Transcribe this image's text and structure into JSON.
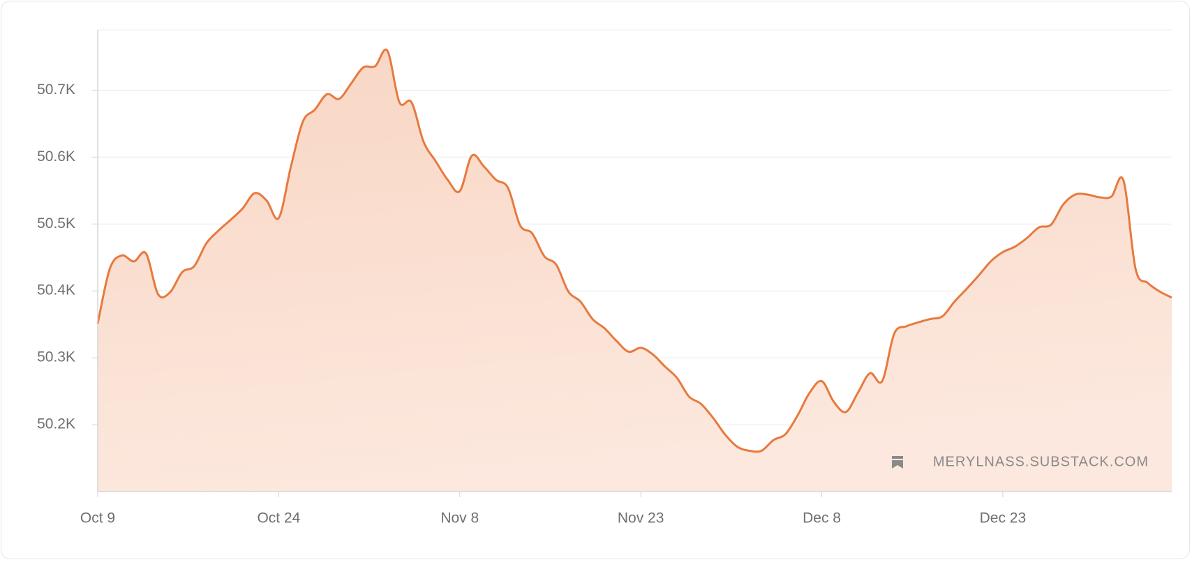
{
  "chart_data": {
    "type": "area",
    "categories": [
      "Oct 9",
      null,
      null,
      null,
      null,
      null,
      null,
      null,
      null,
      null,
      null,
      null,
      null,
      null,
      null,
      "Oct 24",
      null,
      null,
      null,
      null,
      null,
      null,
      null,
      null,
      null,
      null,
      null,
      null,
      null,
      null,
      "Nov 8",
      null,
      null,
      null,
      null,
      null,
      null,
      null,
      null,
      null,
      null,
      null,
      null,
      null,
      null,
      "Nov 23",
      null,
      null,
      null,
      null,
      null,
      null,
      null,
      null,
      null,
      null,
      null,
      null,
      null,
      null,
      "Dec 8",
      null,
      null,
      null,
      null,
      null,
      null,
      null,
      null,
      null,
      null,
      null,
      null,
      null,
      null,
      "Dec 23",
      null,
      null,
      null,
      null,
      null,
      null,
      null,
      null,
      null,
      null,
      null,
      null,
      null,
      null
    ],
    "values": [
      50351,
      50433,
      50453,
      50444,
      50456,
      50395,
      50398,
      50428,
      50437,
      50471,
      50490,
      50506,
      50523,
      50546,
      50535,
      50509,
      50585,
      50653,
      50671,
      50694,
      50687,
      50710,
      50734,
      50736,
      50759,
      50682,
      50682,
      50623,
      50594,
      50566,
      50549,
      50602,
      50586,
      50566,
      50554,
      50498,
      50486,
      50452,
      50439,
      50399,
      50384,
      50358,
      50344,
      50325,
      50309,
      50315,
      50305,
      50287,
      50270,
      50242,
      50231,
      50210,
      50185,
      50167,
      50161,
      50161,
      50177,
      50186,
      50214,
      50248,
      50265,
      50234,
      50219,
      50248,
      50277,
      50265,
      50336,
      50347,
      50353,
      50358,
      50362,
      50384,
      50403,
      50423,
      50444,
      50458,
      50466,
      50479,
      50495,
      50499,
      50529,
      50544,
      50544,
      50540,
      50541,
      50565,
      50433,
      50412,
      50399,
      50390
    ],
    "color": "#e8793f",
    "ylim": [
      50100,
      50790
    ],
    "yticks": [
      {
        "value": 50200,
        "label": "50.2K"
      },
      {
        "value": 50300,
        "label": "50.3K"
      },
      {
        "value": 50400,
        "label": "50.4K"
      },
      {
        "value": 50500,
        "label": "50.5K"
      },
      {
        "value": 50600,
        "label": "50.6K"
      },
      {
        "value": 50700,
        "label": "50.7K"
      }
    ],
    "grid": true,
    "watermark": "MERYLNASS.SUBSTACK.COM"
  }
}
